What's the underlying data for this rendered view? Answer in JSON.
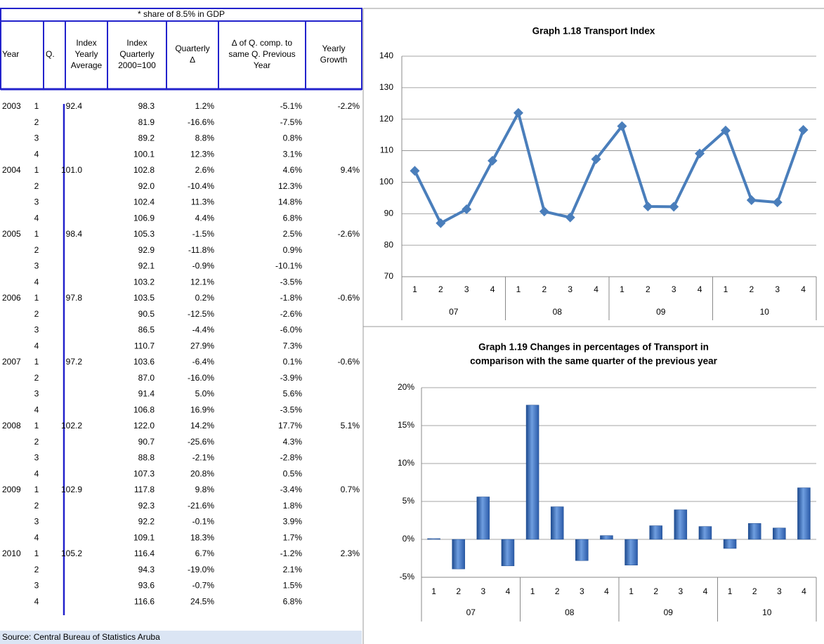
{
  "note": "* share of 8.5% in GDP",
  "table": {
    "headers": [
      [
        "Year"
      ],
      [
        "Q."
      ],
      [
        "Index",
        "Yearly",
        "Average"
      ],
      [
        "Index",
        "Quarterly",
        "2000=100"
      ],
      [
        "Quarterly",
        "∆"
      ],
      [
        "∆ of Q. comp. to",
        "same Q. Previous",
        "Year"
      ],
      [
        "Yearly",
        "Growth"
      ]
    ],
    "rows": [
      [
        "2003",
        "1",
        "92.4",
        "98.3",
        "1.2%",
        "-5.1%",
        "-2.2%"
      ],
      [
        null,
        "2",
        null,
        "81.9",
        "-16.6%",
        "-7.5%",
        null
      ],
      [
        null,
        "3",
        null,
        "89.2",
        "8.8%",
        "0.8%",
        null
      ],
      [
        null,
        "4",
        null,
        "100.1",
        "12.3%",
        "3.1%",
        null
      ],
      [
        "2004",
        "1",
        "101.0",
        "102.8",
        "2.6%",
        "4.6%",
        "9.4%"
      ],
      [
        null,
        "2",
        null,
        "92.0",
        "-10.4%",
        "12.3%",
        null
      ],
      [
        null,
        "3",
        null,
        "102.4",
        "11.3%",
        "14.8%",
        null
      ],
      [
        null,
        "4",
        null,
        "106.9",
        "4.4%",
        "6.8%",
        null
      ],
      [
        "2005",
        "1",
        "98.4",
        "105.3",
        "-1.5%",
        "2.5%",
        "-2.6%"
      ],
      [
        null,
        "2",
        null,
        "92.9",
        "-11.8%",
        "0.9%",
        null
      ],
      [
        null,
        "3",
        null,
        "92.1",
        "-0.9%",
        "-10.1%",
        null
      ],
      [
        null,
        "4",
        null,
        "103.2",
        "12.1%",
        "-3.5%",
        null
      ],
      [
        "2006",
        "1",
        "97.8",
        "103.5",
        "0.2%",
        "-1.8%",
        "-0.6%"
      ],
      [
        null,
        "2",
        null,
        "90.5",
        "-12.5%",
        "-2.6%",
        null
      ],
      [
        null,
        "3",
        null,
        "86.5",
        "-4.4%",
        "-6.0%",
        null
      ],
      [
        null,
        "4",
        null,
        "110.7",
        "27.9%",
        "7.3%",
        null
      ],
      [
        "2007",
        "1",
        "97.2",
        "103.6",
        "-6.4%",
        "0.1%",
        "-0.6%"
      ],
      [
        null,
        "2",
        null,
        "87.0",
        "-16.0%",
        "-3.9%",
        null
      ],
      [
        null,
        "3",
        null,
        "91.4",
        "5.0%",
        "5.6%",
        null
      ],
      [
        null,
        "4",
        null,
        "106.8",
        "16.9%",
        "-3.5%",
        null
      ],
      [
        "2008",
        "1",
        "102.2",
        "122.0",
        "14.2%",
        "17.7%",
        "5.1%"
      ],
      [
        null,
        "2",
        null,
        "90.7",
        "-25.6%",
        "4.3%",
        null
      ],
      [
        null,
        "3",
        null,
        "88.8",
        "-2.1%",
        "-2.8%",
        null
      ],
      [
        null,
        "4",
        null,
        "107.3",
        "20.8%",
        "0.5%",
        null
      ],
      [
        "2009",
        "1",
        "102.9",
        "117.8",
        "9.8%",
        "-3.4%",
        "0.7%"
      ],
      [
        null,
        "2",
        null,
        "92.3",
        "-21.6%",
        "1.8%",
        null
      ],
      [
        null,
        "3",
        null,
        "92.2",
        "-0.1%",
        "3.9%",
        null
      ],
      [
        null,
        "4",
        null,
        "109.1",
        "18.3%",
        "1.7%",
        null
      ],
      [
        "2010",
        "1",
        "105.2",
        "116.4",
        "6.7%",
        "-1.2%",
        "2.3%"
      ],
      [
        null,
        "2",
        null,
        "94.3",
        "-19.0%",
        "2.1%",
        null
      ],
      [
        null,
        "3",
        null,
        "93.6",
        "-0.7%",
        "1.5%",
        null
      ],
      [
        null,
        "4",
        null,
        "116.6",
        "24.5%",
        "6.8%",
        null
      ]
    ]
  },
  "source": "Source: Central Bureau of Statistics Aruba",
  "chart_data": [
    {
      "type": "line",
      "title": [
        "Graph 1.18 Transport Index"
      ],
      "categories": [
        "1",
        "2",
        "3",
        "4",
        "1",
        "2",
        "3",
        "4",
        "1",
        "2",
        "3",
        "4",
        "1",
        "2",
        "3",
        "4"
      ],
      "groups": [
        "07",
        "08",
        "09",
        "10"
      ],
      "values": [
        103.6,
        87.0,
        91.4,
        106.8,
        122.0,
        90.7,
        88.8,
        107.3,
        117.8,
        92.3,
        92.2,
        109.1,
        116.4,
        94.3,
        93.6,
        116.6
      ],
      "color": "#4a7ebb",
      "ylim": [
        70,
        140
      ],
      "yticks": [
        70,
        80,
        90,
        100,
        110,
        120,
        130,
        140
      ],
      "grid": true
    },
    {
      "type": "bar",
      "title": [
        "Graph 1.19 Changes in percentages of Transport in",
        "comparison with the same quarter of the previous year"
      ],
      "categories": [
        "1",
        "2",
        "3",
        "4",
        "1",
        "2",
        "3",
        "4",
        "1",
        "2",
        "3",
        "4",
        "1",
        "2",
        "3",
        "4"
      ],
      "groups": [
        "07",
        "08",
        "09",
        "10"
      ],
      "values": [
        0.1,
        -3.9,
        5.6,
        -3.5,
        17.7,
        4.3,
        -2.8,
        0.5,
        -3.4,
        1.8,
        3.9,
        1.7,
        -1.2,
        2.1,
        1.5,
        6.8
      ],
      "color": "#3a6fc0",
      "ylim": [
        -5,
        20
      ],
      "yticks": [
        {
          "value": -5,
          "label": "-5%"
        },
        {
          "value": 0,
          "label": "0%"
        },
        {
          "value": 5,
          "label": "5%"
        },
        {
          "value": 10,
          "label": "10%"
        },
        {
          "value": 15,
          "label": "15%"
        },
        {
          "value": 20,
          "label": "20%"
        }
      ],
      "grid": true
    }
  ]
}
